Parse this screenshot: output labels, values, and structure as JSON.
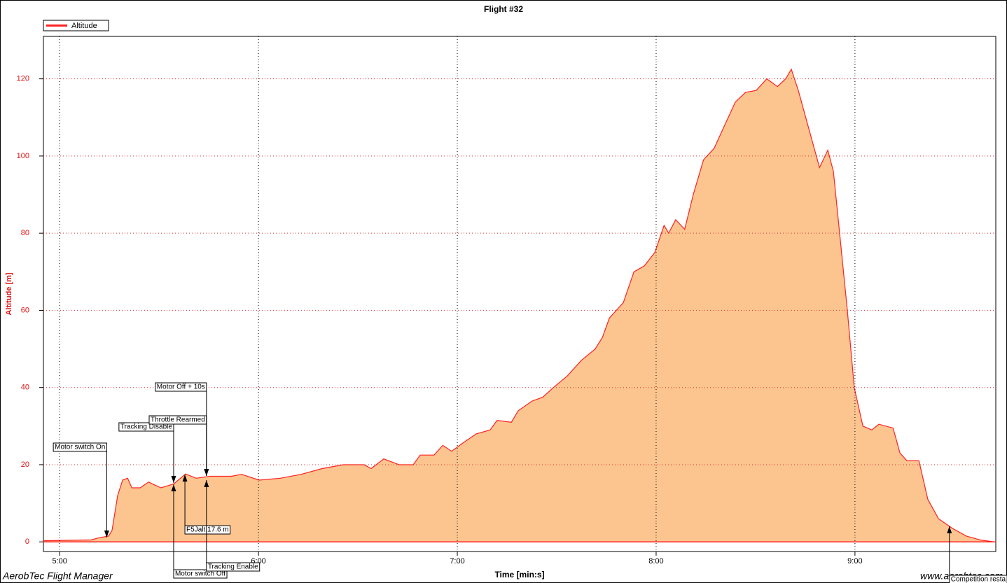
{
  "chart_data": {
    "type": "area",
    "title": "Flight #32",
    "x_label": "Time [min:s]",
    "y_label": "Altitude [m]",
    "x": [
      295.1,
      309.5,
      311.6,
      314.8,
      315.8,
      317.5,
      319,
      320.5,
      321.8,
      324.3,
      326.8,
      330.6,
      334.4,
      338,
      341.2,
      345.4,
      351.8,
      354.9,
      360.2,
      366.6,
      372.9,
      379.2,
      385.6,
      391.9,
      394,
      397.8,
      402.5,
      406.7,
      408.8,
      413,
      415.6,
      418.3,
      421.5,
      425.7,
      429.9,
      432,
      436.3,
      438.4,
      442.6,
      445.8,
      449,
      453.2,
      457.4,
      461.6,
      463.8,
      465.9,
      470.1,
      473.3,
      476.4,
      479.6,
      482.4,
      483.8,
      485.9,
      488.6,
      491.2,
      494.3,
      497.5,
      500.7,
      503.9,
      507,
      510.2,
      513.4,
      516.6,
      519.1,
      520.8,
      522.9,
      526.1,
      529.3,
      531.8,
      533.5,
      535.6,
      537.7,
      539.8,
      542.4,
      545.1,
      547.2,
      551.5,
      553.6,
      555.7,
      559.3,
      562,
      565.2,
      569.4,
      573.6,
      577.8,
      582
    ],
    "series": [
      {
        "name": "Altitude",
        "color": "#ff2020",
        "fill": "#fcc590",
        "values": [
          0.3,
          0.5,
          1,
          1.5,
          3,
          12,
          16,
          16.5,
          14,
          14,
          15.5,
          14,
          15,
          17.6,
          16.5,
          17,
          17,
          17.5,
          16,
          16.5,
          17.5,
          19,
          20,
          20,
          19,
          21.5,
          20,
          20,
          22.5,
          22.5,
          25,
          23.5,
          25.5,
          28,
          29,
          31.5,
          31,
          34,
          36.5,
          37.5,
          40,
          43,
          47,
          50,
          53,
          58,
          62,
          70,
          71.5,
          75,
          82,
          80,
          83.5,
          81,
          90,
          99,
          102,
          108,
          114,
          116.5,
          117,
          120,
          118,
          120,
          122.5,
          117,
          107,
          97,
          101.5,
          96,
          78,
          60,
          40,
          30,
          29,
          30.5,
          29.5,
          23,
          21,
          21,
          11,
          6,
          3.5,
          1.5,
          0.5,
          0
        ]
      }
    ],
    "xlim": [
      295.1,
      582.5
    ],
    "ylim": [
      -2.5,
      131
    ],
    "xticks": [
      {
        "value": 300,
        "label": "5:00"
      },
      {
        "value": 360,
        "label": "6:00"
      },
      {
        "value": 420,
        "label": "7:00"
      },
      {
        "value": 480,
        "label": "8:00"
      },
      {
        "value": 540,
        "label": "9:00"
      }
    ],
    "yticks": [
      0,
      20,
      40,
      60,
      80,
      100,
      120
    ],
    "grid": true,
    "legend": "top-left",
    "annotations": [
      {
        "text": "Motor switch On",
        "x": 314.2
      },
      {
        "text": "Tracking Disable",
        "x": 334.4
      },
      {
        "text": "Throttle Rearmed",
        "x": 344.3
      },
      {
        "text": "Motor Off + 10s",
        "x": 344.3
      },
      {
        "text": "Motor switch Off",
        "x": 334.4
      },
      {
        "text": "F5Jalt.17.6 m",
        "x": 337.8
      },
      {
        "text": "Tracking Enable",
        "x": 344.3
      },
      {
        "text": "Competition resta",
        "x": 568.5
      }
    ]
  },
  "footer": {
    "left": "AerobTec Flight Manager",
    "right": "www.aerobtec.com"
  }
}
